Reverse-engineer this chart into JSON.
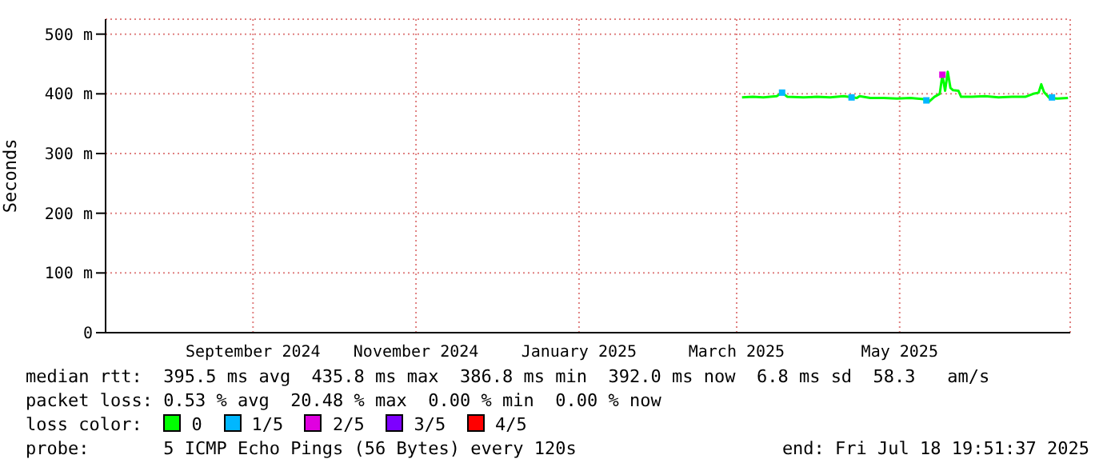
{
  "chart_data": {
    "type": "line",
    "ylabel": "Seconds",
    "legend_title": "loss color:",
    "legend": "bottom",
    "grid": true,
    "marker": "none",
    "xlim": [
      "2024-07-22T19:51",
      "2025-07-18T19:51"
    ],
    "xticks": [
      {
        "value": "2024-09-16",
        "label": "September 2024"
      },
      {
        "value": "2024-11-16",
        "label": "November 2024"
      },
      {
        "value": "2025-01-16",
        "label": "January 2025"
      },
      {
        "value": "2025-03-16",
        "label": "March 2025"
      },
      {
        "value": "2025-05-16",
        "label": "May 2025"
      }
    ],
    "ylim": [
      0,
      525
    ],
    "yticks": [
      0,
      {
        "value": 100,
        "label": "100 m"
      },
      {
        "value": 200,
        "label": "200 m"
      },
      {
        "value": 300,
        "label": "300 m"
      },
      {
        "value": 400,
        "label": "400 m"
      },
      {
        "value": 500,
        "label": "500 m"
      }
    ],
    "series": [
      {
        "name": "0",
        "color": "#00ff00",
        "x": [
          "2025-03-18",
          "2025-03-22",
          "2025-03-26",
          "2025-03-31",
          "2025-04-02",
          "2025-04-04",
          "2025-04-10",
          "2025-04-15",
          "2025-04-20",
          "2025-04-25",
          "2025-04-30",
          "2025-05-01",
          "2025-05-05",
          "2025-05-10",
          "2025-05-15",
          "2025-05-20",
          "2025-05-25",
          "2025-05-27",
          "2025-05-29",
          "2025-05-31",
          "2025-06-01",
          "2025-06-02",
          "2025-06-03",
          "2025-06-04",
          "2025-06-05",
          "2025-06-07",
          "2025-06-08",
          "2025-06-12",
          "2025-06-17",
          "2025-06-22",
          "2025-06-27",
          "2025-07-02",
          "2025-07-05",
          "2025-07-07",
          "2025-07-08",
          "2025-07-09",
          "2025-07-11",
          "2025-07-14",
          "2025-07-18"
        ],
        "values": [
          394,
          395,
          394,
          396,
          402,
          395,
          394,
          395,
          394,
          396,
          393,
          396,
          393,
          393,
          392,
          393,
          391,
          387,
          395,
          400,
          432,
          405,
          437,
          410,
          406,
          405,
          395,
          395,
          396,
          394,
          395,
          395,
          400,
          402,
          416,
          403,
          393,
          392,
          393
        ]
      },
      {
        "name": "1/5",
        "color": "#00b7ff",
        "type": "scatter",
        "marker": "square",
        "x": [
          "2025-04-02",
          "2025-04-28",
          "2025-05-26",
          "2025-07-12"
        ],
        "values": [
          402,
          394,
          389,
          394
        ]
      },
      {
        "name": "2/5",
        "color": "#e000e0",
        "type": "scatter",
        "marker": "square",
        "x": [
          "2025-06-01"
        ],
        "values": [
          432
        ]
      },
      {
        "name": "3/5",
        "color": "#7d00ff",
        "type": "scatter",
        "marker": "square"
      },
      {
        "name": "4/5",
        "color": "#ff0000",
        "type": "scatter",
        "marker": "square"
      }
    ],
    "annotations": [
      "median rtt:  395.5 ms avg  435.8 ms max  386.8 ms min  392.0 ms now  6.8 ms sd  58.3   am/s",
      "packet loss: 0.53 % avg  20.48 % max  0.00 % min  0.00 % now",
      "probe:       5 ICMP Echo Pings (56 Bytes) every 120s",
      "end: Fri Jul 18 19:51:37 2025"
    ]
  }
}
